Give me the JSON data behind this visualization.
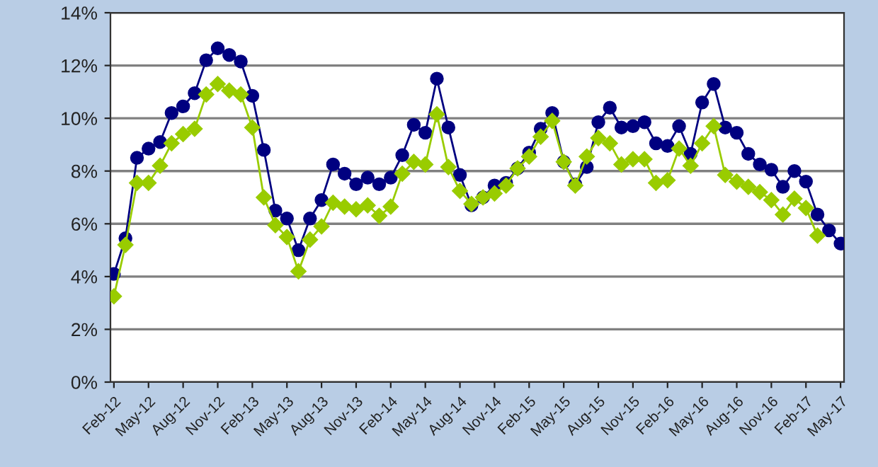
{
  "chart_data": {
    "type": "line",
    "categories": [
      "Feb-12",
      null,
      null,
      "May-12",
      null,
      null,
      "Aug-12",
      null,
      null,
      "Nov-12",
      null,
      null,
      "Feb-13",
      null,
      null,
      "May-13",
      null,
      null,
      "Aug-13",
      null,
      null,
      "Nov-13",
      null,
      null,
      "Feb-14",
      null,
      null,
      "May-14",
      null,
      null,
      "Aug-14",
      null,
      null,
      "Nov-14",
      null,
      null,
      "Feb-15",
      null,
      null,
      "May-15",
      null,
      null,
      "Aug-15",
      null,
      null,
      "Nov-15",
      null,
      null,
      "Feb-16",
      null,
      null,
      "May-16",
      null,
      null,
      "Aug-16",
      null,
      null,
      "Nov-16",
      null,
      null,
      "Feb-17",
      null,
      null,
      "May-17"
    ],
    "series": [
      {
        "color": "#000080",
        "marker": "circle",
        "values": [
          4.1,
          5.45,
          8.5,
          8.85,
          9.1,
          10.2,
          10.45,
          10.95,
          12.2,
          12.65,
          12.4,
          12.15,
          10.85,
          8.8,
          6.5,
          6.2,
          5.0,
          6.2,
          6.9,
          8.25,
          7.9,
          7.5,
          7.75,
          7.5,
          7.75,
          8.6,
          9.75,
          9.45,
          11.5,
          9.65,
          7.85,
          6.7,
          7.0,
          7.45,
          7.55,
          8.1,
          8.7,
          9.6,
          10.2,
          8.35,
          7.5,
          8.15,
          9.85,
          10.4,
          9.65,
          9.7,
          9.85,
          9.05,
          8.95,
          9.7,
          8.65,
          10.6,
          11.3,
          9.65,
          9.45,
          8.65,
          8.25,
          8.05,
          7.4,
          8.0,
          7.6,
          6.35,
          5.75,
          5.25
        ]
      },
      {
        "color": "#99cc00",
        "marker": "diamond",
        "values": [
          3.25,
          5.2,
          7.55,
          7.55,
          8.2,
          9.05,
          9.4,
          9.6,
          10.9,
          11.3,
          11.05,
          10.9,
          9.65,
          7.0,
          5.95,
          5.5,
          4.2,
          5.4,
          5.9,
          6.8,
          6.65,
          6.55,
          6.7,
          6.3,
          6.65,
          7.9,
          8.35,
          8.25,
          10.15,
          8.15,
          7.25,
          6.75,
          7.0,
          7.15,
          7.45,
          8.1,
          8.55,
          9.3,
          9.9,
          8.35,
          7.45,
          8.55,
          9.25,
          9.05,
          8.25,
          8.45,
          8.45,
          7.55,
          7.65,
          8.85,
          8.2,
          9.05,
          9.7,
          7.85,
          7.6,
          7.4,
          7.2,
          6.9,
          6.35,
          6.95,
          6.6,
          5.55,
          null,
          null
        ]
      }
    ],
    "ylim": [
      0,
      14
    ],
    "yticks": [
      {
        "value": 0,
        "label": "0%"
      },
      {
        "value": 2,
        "label": "2%"
      },
      {
        "value": 4,
        "label": "4%"
      },
      {
        "value": 6,
        "label": "6%"
      },
      {
        "value": 8,
        "label": "8%"
      },
      {
        "value": 10,
        "label": "10%"
      },
      {
        "value": 12,
        "label": "12%"
      },
      {
        "value": 14,
        "label": "14%"
      }
    ],
    "grid": "y"
  }
}
